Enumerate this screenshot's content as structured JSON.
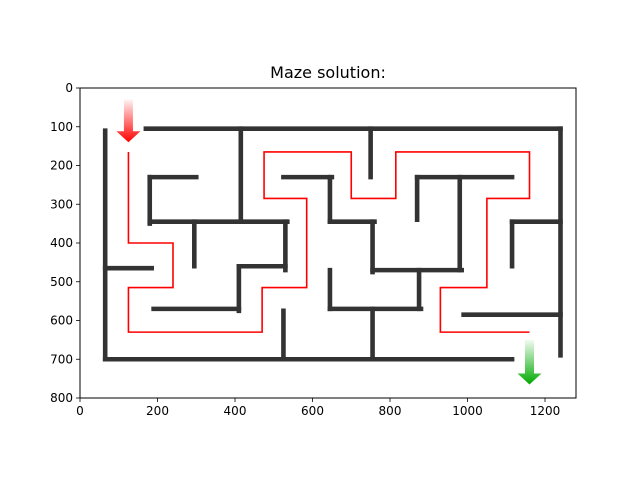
{
  "chart_data": {
    "type": "image",
    "title": "Maze solution:",
    "xlim": [
      0,
      1280
    ],
    "ylim": [
      800,
      0
    ],
    "x_ticks": [
      0,
      200,
      400,
      600,
      800,
      1000,
      1200
    ],
    "y_ticks": [
      0,
      100,
      200,
      300,
      400,
      500,
      600,
      700,
      800
    ],
    "wall_color": "#333333",
    "path_color": "#ff0000",
    "start_arrow_color": "#ff0000",
    "end_arrow_color": "#00aa00",
    "walls": [
      [
        [
          170,
          105
        ],
        [
          1240,
          105
        ]
      ],
      [
        [
          1240,
          105
        ],
        [
          1240,
          690
        ]
      ],
      [
        [
          65,
          110
        ],
        [
          65,
          700
        ]
      ],
      [
        [
          65,
          700
        ],
        [
          1115,
          700
        ]
      ],
      [
        [
          65,
          465
        ],
        [
          185,
          465
        ]
      ],
      [
        [
          415,
          105
        ],
        [
          415,
          340
        ]
      ],
      [
        [
          750,
          105
        ],
        [
          750,
          230
        ]
      ],
      [
        [
          180,
          230
        ],
        [
          300,
          230
        ]
      ],
      [
        [
          180,
          230
        ],
        [
          180,
          350
        ]
      ],
      [
        [
          180,
          345
        ],
        [
          535,
          345
        ]
      ],
      [
        [
          295,
          345
        ],
        [
          295,
          460
        ]
      ],
      [
        [
          530,
          345
        ],
        [
          530,
          470
        ]
      ],
      [
        [
          410,
          460
        ],
        [
          530,
          460
        ]
      ],
      [
        [
          410,
          460
        ],
        [
          410,
          575
        ]
      ],
      [
        [
          190,
          570
        ],
        [
          410,
          570
        ]
      ],
      [
        [
          525,
          575
        ],
        [
          525,
          690
        ]
      ],
      [
        [
          525,
          230
        ],
        [
          650,
          230
        ]
      ],
      [
        [
          645,
          230
        ],
        [
          645,
          345
        ]
      ],
      [
        [
          645,
          345
        ],
        [
          760,
          345
        ]
      ],
      [
        [
          755,
          345
        ],
        [
          755,
          475
        ]
      ],
      [
        [
          755,
          470
        ],
        [
          985,
          470
        ]
      ],
      [
        [
          980,
          230
        ],
        [
          980,
          470
        ]
      ],
      [
        [
          870,
          230
        ],
        [
          1115,
          230
        ]
      ],
      [
        [
          870,
          230
        ],
        [
          870,
          340
        ]
      ],
      [
        [
          645,
          470
        ],
        [
          645,
          570
        ]
      ],
      [
        [
          645,
          570
        ],
        [
          880,
          570
        ]
      ],
      [
        [
          875,
          470
        ],
        [
          875,
          570
        ]
      ],
      [
        [
          755,
          570
        ],
        [
          755,
          690
        ]
      ],
      [
        [
          1115,
          345
        ],
        [
          1240,
          345
        ]
      ],
      [
        [
          1115,
          345
        ],
        [
          1115,
          460
        ]
      ],
      [
        [
          990,
          585
        ],
        [
          1240,
          585
        ]
      ]
    ],
    "solution_path": [
      [
        125,
        165
      ],
      [
        125,
        400
      ],
      [
        240,
        400
      ],
      [
        240,
        515
      ],
      [
        125,
        515
      ],
      [
        125,
        630
      ],
      [
        470,
        630
      ],
      [
        470,
        515
      ],
      [
        585,
        515
      ],
      [
        585,
        285
      ],
      [
        475,
        285
      ],
      [
        475,
        165
      ],
      [
        700,
        165
      ],
      [
        700,
        285
      ],
      [
        815,
        285
      ],
      [
        815,
        165
      ],
      [
        1160,
        165
      ],
      [
        1160,
        285
      ],
      [
        1050,
        285
      ],
      [
        1050,
        515
      ],
      [
        930,
        515
      ],
      [
        930,
        630
      ],
      [
        1160,
        630
      ]
    ],
    "start_arrow": {
      "x": 125,
      "y_from": 30,
      "y_to": 140
    },
    "end_arrow": {
      "x": 1160,
      "y_from": 650,
      "y_to": 765
    }
  }
}
